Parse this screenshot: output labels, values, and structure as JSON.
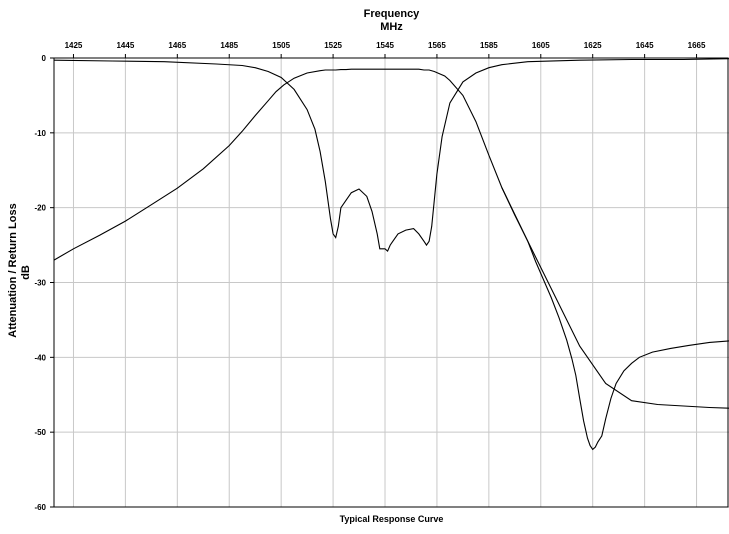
{
  "chart_data": {
    "type": "line",
    "title": "Frequency",
    "xlabel": "MHz",
    "ylabel": "Attenuation / Return Loss",
    "yunit": "dB",
    "footer": "Typical Response Curve",
    "xlim": [
      1417.5,
      1677.5
    ],
    "ylim": [
      -60,
      0
    ],
    "xticks": [
      1425,
      1445,
      1465,
      1485,
      1505,
      1525,
      1545,
      1565,
      1585,
      1605,
      1625,
      1645,
      1665
    ],
    "yticks": [
      0,
      -10,
      -20,
      -30,
      -40,
      -50,
      -60
    ],
    "grid": true,
    "series": [
      {
        "x": [
          1417.5,
          1425,
          1435,
          1445,
          1455,
          1465,
          1475,
          1485,
          1490,
          1495,
          1500,
          1503,
          1506,
          1510,
          1515,
          1520,
          1522,
          1524,
          1526,
          1528,
          1530,
          1532,
          1535,
          1538,
          1540,
          1542,
          1544,
          1546,
          1548,
          1550,
          1552,
          1555,
          1558,
          1560,
          1562,
          1564,
          1566,
          1568,
          1570,
          1575,
          1580,
          1585,
          1590,
          1600,
          1610,
          1620,
          1630,
          1640,
          1650,
          1660,
          1670,
          1677.5
        ],
        "values": [
          -27,
          -25.5,
          -23.7,
          -21.8,
          -19.6,
          -17.4,
          -14.8,
          -11.7,
          -9.8,
          -7.7,
          -5.7,
          -4.5,
          -3.6,
          -2.7,
          -2.0,
          -1.7,
          -1.6,
          -1.6,
          -1.6,
          -1.55,
          -1.55,
          -1.5,
          -1.5,
          -1.5,
          -1.5,
          -1.5,
          -1.5,
          -1.5,
          -1.5,
          -1.5,
          -1.5,
          -1.5,
          -1.5,
          -1.6,
          -1.6,
          -1.8,
          -2.1,
          -2.4,
          -3.0,
          -5.0,
          -8.5,
          -13.0,
          -17.3,
          -24.5,
          -31.5,
          -38.5,
          -43.5,
          -45.8,
          -46.3,
          -46.5,
          -46.7,
          -46.8
        ]
      },
      {
        "x": [
          1417.5,
          1440,
          1460,
          1480,
          1490,
          1495,
          1500,
          1505,
          1510,
          1515,
          1518,
          1520,
          1522,
          1524,
          1525,
          1526,
          1527,
          1528,
          1530,
          1532,
          1535,
          1538,
          1540,
          1542,
          1543,
          1544,
          1545,
          1546,
          1547,
          1548,
          1550,
          1553,
          1556,
          1558,
          1560,
          1561,
          1562,
          1563,
          1564,
          1565,
          1567,
          1570,
          1575,
          1580,
          1585,
          1590,
          1600,
          1620,
          1640,
          1660,
          1677.5
        ],
        "values": [
          -0.3,
          -0.4,
          -0.5,
          -0.8,
          -1.0,
          -1.3,
          -1.8,
          -2.6,
          -4.2,
          -6.9,
          -9.5,
          -12.5,
          -16.5,
          -21.5,
          -23.5,
          -24.0,
          -22.5,
          -20.0,
          -19.0,
          -18.0,
          -17.5,
          -18.5,
          -20.5,
          -23.5,
          -25.5,
          -25.5,
          -25.5,
          -25.8,
          -25.0,
          -24.5,
          -23.5,
          -23.0,
          -22.8,
          -23.5,
          -24.5,
          -25.0,
          -24.5,
          -22.5,
          -19.0,
          -15.5,
          -10.5,
          -6.0,
          -3.2,
          -2.0,
          -1.3,
          -0.9,
          -0.5,
          -0.3,
          -0.2,
          -0.2,
          -0.1
        ]
      },
      {
        "x": [
          1590,
          1595,
          1600,
          1603,
          1606,
          1609,
          1612,
          1615,
          1617,
          1618.5,
          1620,
          1621.5,
          1623,
          1624,
          1625,
          1626,
          1627,
          1628.5,
          1630,
          1632,
          1634,
          1637,
          1640,
          1643,
          1648,
          1655,
          1662,
          1670,
          1677.5
        ],
        "values": [
          -17.3,
          -21.0,
          -24.5,
          -27.2,
          -29.6,
          -32.0,
          -34.7,
          -37.7,
          -40.2,
          -42.4,
          -45.5,
          -48.5,
          -50.8,
          -51.8,
          -52.3,
          -52.0,
          -51.3,
          -50.5,
          -48.2,
          -45.5,
          -43.5,
          -41.8,
          -40.8,
          -40.0,
          -39.3,
          -38.8,
          -38.4,
          -38.0,
          -37.8
        ]
      }
    ]
  }
}
